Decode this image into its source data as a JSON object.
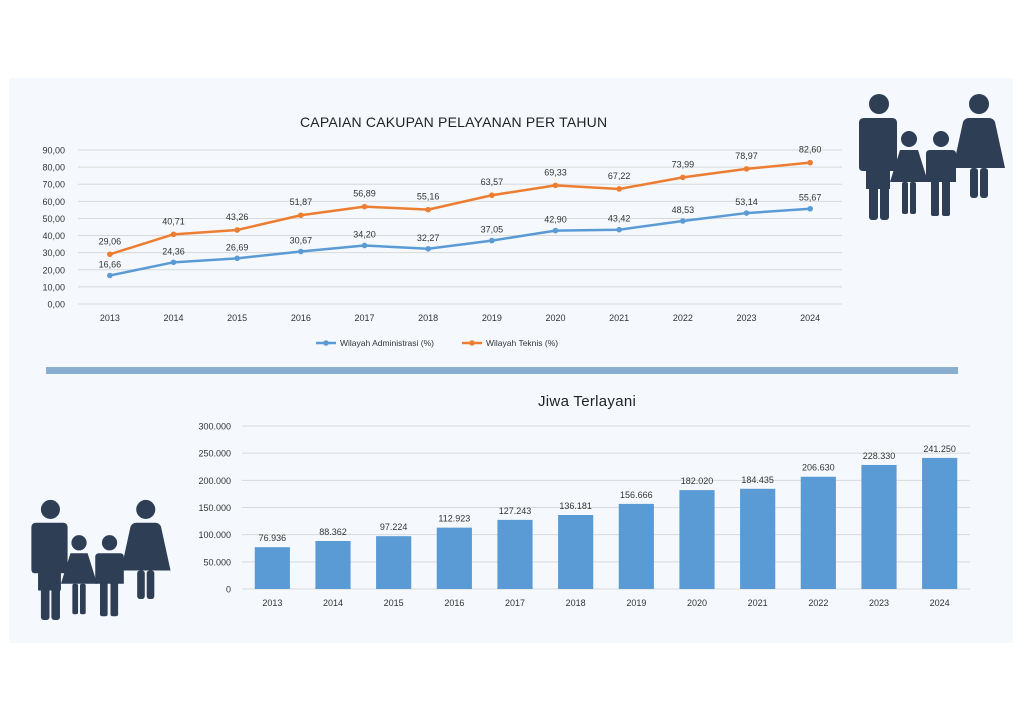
{
  "chart_data": [
    {
      "type": "line",
      "title": "CAPAIAN CAKUPAN PELAYANAN PER TAHUN",
      "categories": [
        "2013",
        "2014",
        "2015",
        "2016",
        "2017",
        "2018",
        "2019",
        "2020",
        "2021",
        "2022",
        "2023",
        "2024"
      ],
      "series": [
        {
          "name": "Wilayah Administrasi (%)",
          "color": "#5b9bd5",
          "values": [
            16.66,
            24.36,
            26.69,
            30.67,
            34.2,
            32.27,
            37.05,
            42.9,
            43.42,
            48.53,
            53.14,
            55.67
          ],
          "labels": [
            "16,66",
            "24,36",
            "26,69",
            "30,67",
            "34,20",
            "32,27",
            "37,05",
            "42,90",
            "43,42",
            "48,53",
            "53,14",
            "55,67"
          ]
        },
        {
          "name": "Wilayah Teknis (%)",
          "color": "#ed7d31",
          "values": [
            29.06,
            40.71,
            43.26,
            51.87,
            56.89,
            55.16,
            63.57,
            69.33,
            67.22,
            73.99,
            78.97,
            82.6
          ],
          "labels": [
            "29,06",
            "40,71",
            "43,26",
            "51,87",
            "56,89",
            "55,16",
            "63,57",
            "69,33",
            "67,22",
            "73,99",
            "78,97",
            "82,60"
          ]
        }
      ],
      "ylim": [
        0,
        90
      ],
      "yticks": [
        "0,00",
        "10,00",
        "20,00",
        "30,00",
        "40,00",
        "50,00",
        "60,00",
        "70,00",
        "80,00",
        "90,00"
      ],
      "grid": true,
      "legend": "bottom"
    },
    {
      "type": "bar",
      "title": "Jiwa Terlayani",
      "categories": [
        "2013",
        "2014",
        "2015",
        "2016",
        "2017",
        "2018",
        "2019",
        "2020",
        "2021",
        "2022",
        "2023",
        "2024"
      ],
      "values": [
        76936,
        88362,
        97224,
        112923,
        127243,
        136181,
        156666,
        182020,
        184435,
        206630,
        228330,
        241250
      ],
      "labels": [
        "76.936",
        "88.362",
        "97.224",
        "112.923",
        "127.243",
        "136.181",
        "156.666",
        "182.020",
        "184.435",
        "206.630",
        "228.330",
        "241.250"
      ],
      "color": "#5b9bd5",
      "ylim": [
        0,
        300000
      ],
      "yticks": [
        "0",
        "50.000",
        "100.000",
        "150.000",
        "200.000",
        "250.000",
        "300.000"
      ],
      "grid": true
    }
  ],
  "colors": {
    "icon": "#2d3e55",
    "divider": "#8aaed0",
    "panel": "#f5f9fd"
  },
  "icons": [
    "family-icon",
    "family-icon"
  ]
}
